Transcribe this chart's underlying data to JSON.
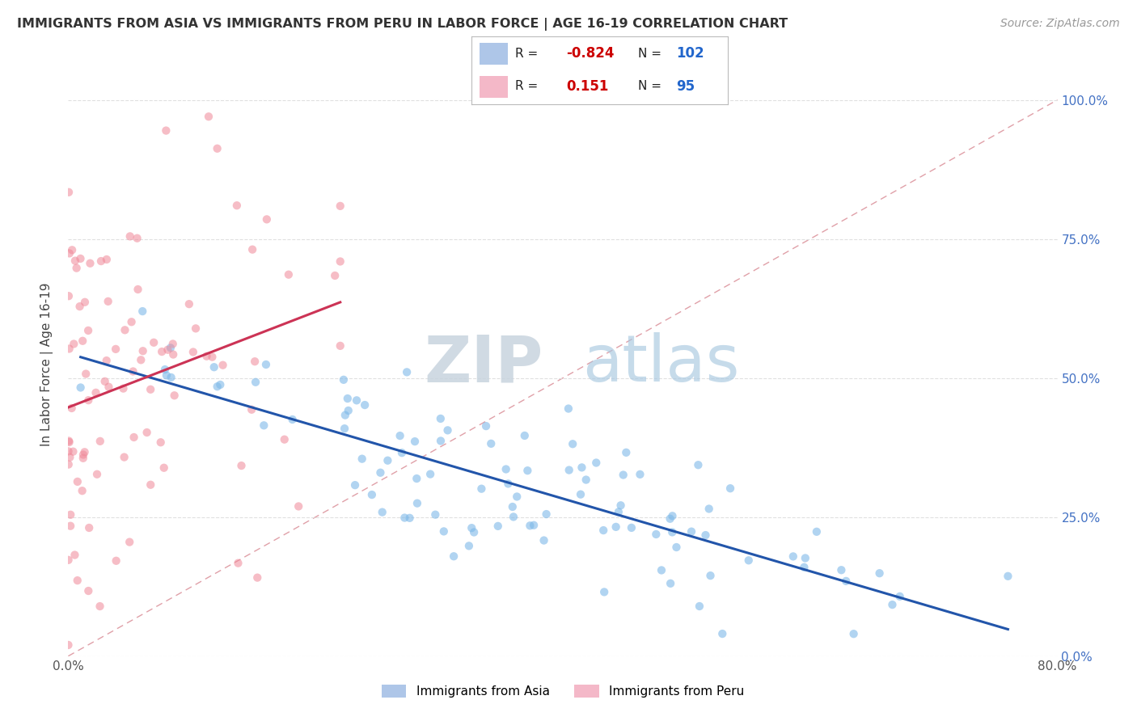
{
  "title": "IMMIGRANTS FROM ASIA VS IMMIGRANTS FROM PERU IN LABOR FORCE | AGE 16-19 CORRELATION CHART",
  "source": "Source: ZipAtlas.com",
  "ylabel": "In Labor Force | Age 16-19",
  "xlim": [
    0.0,
    0.8
  ],
  "ylim": [
    0.0,
    1.05
  ],
  "ytick_labels_right": [
    "0.0%",
    "25.0%",
    "50.0%",
    "75.0%",
    "100.0%"
  ],
  "ytick_values_right": [
    0.0,
    0.25,
    0.5,
    0.75,
    1.0
  ],
  "background_color": "#ffffff",
  "grid_color": "#dddddd",
  "asia_color": "#7db8e8",
  "peru_color": "#f08898",
  "asia_r": -0.824,
  "asia_n": 102,
  "peru_r": 0.151,
  "peru_n": 95,
  "ref_line_color": "#e0a0a8",
  "trend_asia_color": "#2255aa",
  "trend_peru_color": "#cc3355",
  "legend_asia_patch": "#aec6e8",
  "legend_peru_patch": "#f4b8c8",
  "legend_r_color": "#cc0000",
  "legend_n_color": "#2266cc",
  "watermark_zip_color": "#c8d8e8",
  "watermark_atlas_color": "#a8c0d8"
}
